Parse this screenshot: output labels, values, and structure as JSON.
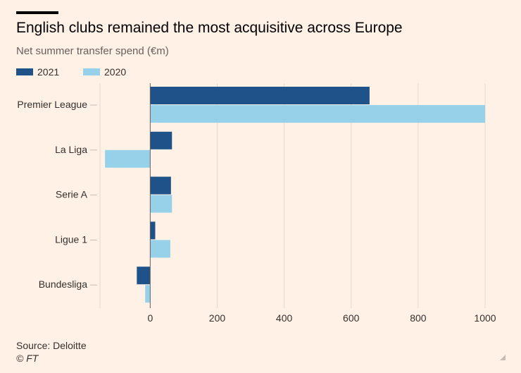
{
  "header": {
    "title": "English clubs remained the most acquisitive across Europe",
    "subtitle": "Net summer transfer spend (€m)"
  },
  "legend": [
    {
      "label": "2021",
      "color": "#1f5289"
    },
    {
      "label": "2020",
      "color": "#96d1e9"
    }
  ],
  "chart_data": {
    "type": "bar",
    "orientation": "horizontal",
    "title": "English clubs remained the most acquisitive across Europe",
    "subtitle": "Net summer transfer spend (€m)",
    "categories": [
      "Premier League",
      "La Liga",
      "Serie A",
      "Ligue 1",
      "Bundesliga"
    ],
    "series": [
      {
        "name": "2021",
        "color": "#1f5289",
        "values": [
          655,
          65,
          62,
          15,
          -40
        ]
      },
      {
        "name": "2020",
        "color": "#96d1e9",
        "values": [
          1000,
          -135,
          65,
          60,
          -15
        ]
      }
    ],
    "xlim": [
      -150,
      1000
    ],
    "xticks": [
      0,
      200,
      400,
      600,
      800,
      1000
    ],
    "xlabel": "",
    "ylabel": "",
    "grid": true,
    "legend_position": "top-left"
  },
  "footer": {
    "source": "Source: Deloitte",
    "credit": "© FT"
  }
}
